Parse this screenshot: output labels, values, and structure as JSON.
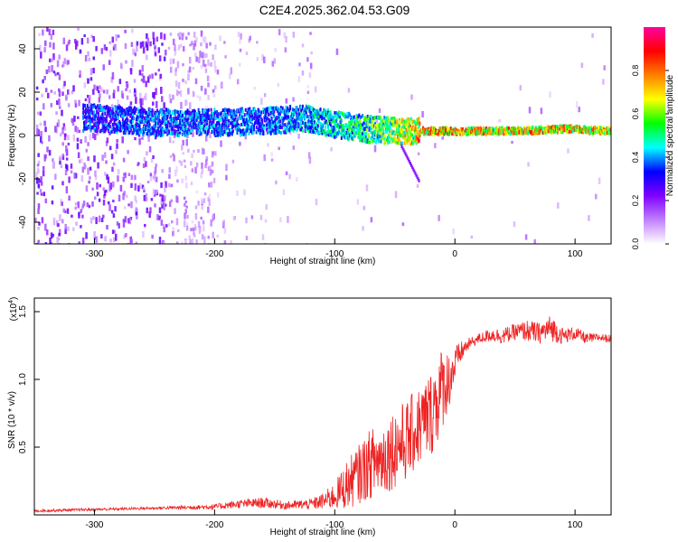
{
  "title": "C2E4.2025.362.04.53.G09",
  "chart_data": [
    {
      "type": "heatmap",
      "title": "C2E4.2025.362.04.53.G09",
      "xlabel": "Height of straight line (km)",
      "ylabel": "Frequency (Hz)",
      "xlim": [
        -350,
        130
      ],
      "ylim": [
        -50,
        50
      ],
      "x_ticks": [
        -300,
        -200,
        -100,
        0,
        100
      ],
      "y_ticks": [
        -40,
        -20,
        0,
        20,
        40
      ],
      "colorbar": {
        "label": "Normalized spectral amplitude",
        "range": [
          0,
          1
        ],
        "ticks": [
          0.0,
          0.2,
          0.4,
          0.6,
          0.8
        ],
        "tick_labels": [
          "0.0",
          "0.2",
          "0.4",
          "0.6",
          "0.8"
        ],
        "colors": [
          "#ffffff",
          "#c080ff",
          "#8000ff",
          "#0000ff",
          "#00ffff",
          "#00ff00",
          "#ffff00",
          "#ff8000",
          "#ff0000",
          "#ff00a0"
        ]
      },
      "ridge": {
        "description_points_x": [
          -300,
          -250,
          -200,
          -150,
          -125,
          -100,
          -75,
          -50,
          -30,
          -10,
          0,
          50,
          90,
          130
        ],
        "center_freq_hz": [
          8,
          6,
          6,
          7,
          8,
          5,
          3,
          2,
          2,
          2,
          2,
          2,
          3,
          2
        ],
        "intensity": [
          0.4,
          0.45,
          0.45,
          0.45,
          0.5,
          0.55,
          0.6,
          0.7,
          0.85,
          0.9,
          0.85,
          0.85,
          0.85,
          0.85
        ]
      }
    },
    {
      "type": "line",
      "xlabel": "Height of straight line (km)",
      "ylabel": "SNR (10 * v/v)",
      "y_scale_label": "(x10",
      "y_scale_exponent": "4",
      "y_scale_suffix": ")",
      "xlim": [
        -350,
        130
      ],
      "ylim": [
        0,
        1.6
      ],
      "x_ticks": [
        -300,
        -200,
        -100,
        0,
        100
      ],
      "y_ticks": [
        0.5,
        1.0,
        1.5
      ],
      "y_tick_labels": [
        "0.5",
        "1.0",
        "1.5"
      ],
      "series_color": "#ee2222",
      "series": [
        {
          "name": "SNR",
          "x": [
            -350,
            -300,
            -250,
            -200,
            -180,
            -160,
            -140,
            -120,
            -110,
            -100,
            -90,
            -80,
            -70,
            -60,
            -50,
            -40,
            -30,
            -20,
            -15,
            -10,
            -5,
            0,
            5,
            10,
            15,
            20,
            30,
            40,
            50,
            60,
            70,
            80,
            90,
            100,
            110,
            120,
            130
          ],
          "y": [
            0.03,
            0.04,
            0.05,
            0.06,
            0.08,
            0.09,
            0.07,
            0.08,
            0.1,
            0.14,
            0.22,
            0.3,
            0.38,
            0.42,
            0.5,
            0.55,
            0.65,
            0.75,
            0.85,
            0.95,
            1.0,
            1.1,
            1.2,
            1.25,
            1.28,
            1.3,
            1.33,
            1.32,
            1.35,
            1.36,
            1.34,
            1.38,
            1.32,
            1.34,
            1.3,
            1.31,
            1.3
          ],
          "noise": [
            0.01,
            0.01,
            0.01,
            0.02,
            0.03,
            0.04,
            0.03,
            0.04,
            0.06,
            0.1,
            0.18,
            0.22,
            0.26,
            0.28,
            0.3,
            0.3,
            0.3,
            0.32,
            0.35,
            0.3,
            0.22,
            0.15,
            0.08,
            0.05,
            0.04,
            0.04,
            0.05,
            0.06,
            0.06,
            0.08,
            0.08,
            0.1,
            0.06,
            0.05,
            0.04,
            0.03,
            0.03
          ]
        }
      ]
    }
  ]
}
